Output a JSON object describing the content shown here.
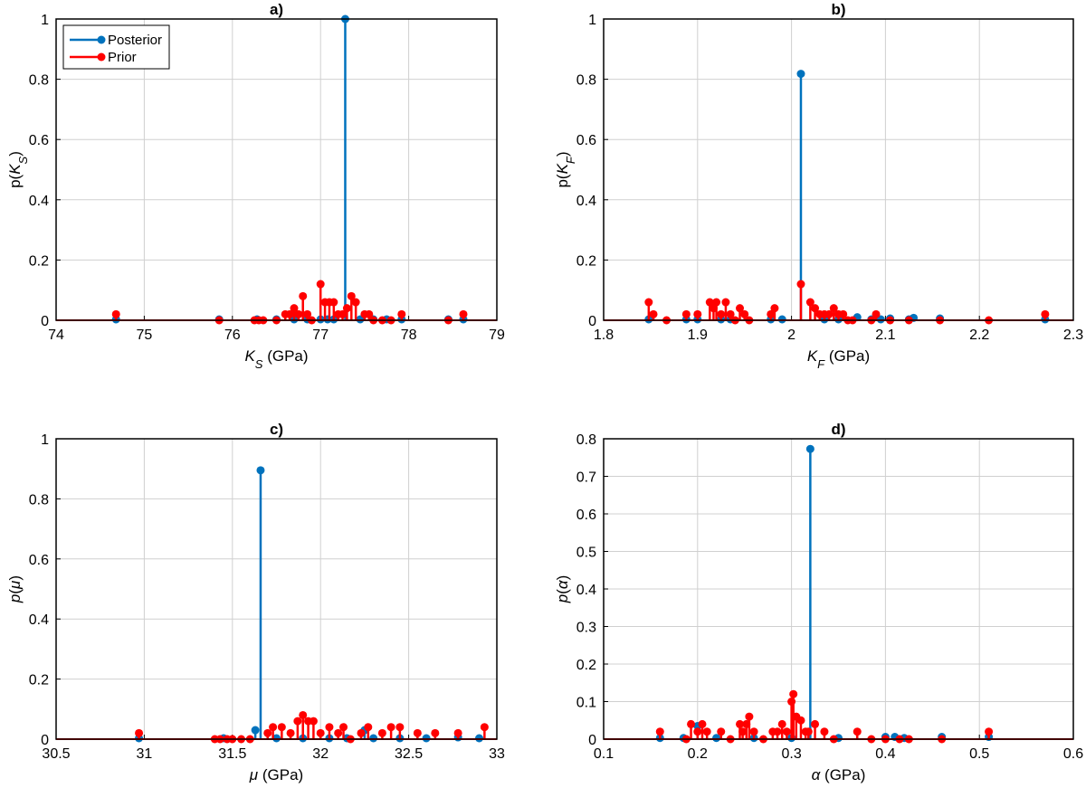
{
  "colors": {
    "posterior": "#0072BD",
    "prior": "#FF0000",
    "grid": "#D0D0D0",
    "axis": "#000000"
  },
  "legend": {
    "entries": [
      "Posterior",
      "Prior"
    ],
    "placement": "top-left of panel a"
  },
  "chart_data": [
    {
      "type": "stem",
      "title": "a)",
      "ylabel": "p(K_S)",
      "xlabel": "K_S (GPa)",
      "xlim": [
        74,
        79
      ],
      "ylim": [
        0,
        1
      ],
      "xticks": [
        "74",
        "75",
        "76",
        "77",
        "78",
        "79"
      ],
      "yticks": [
        "0",
        "0.2",
        "0.4",
        "0.6",
        "0.8",
        "1"
      ],
      "grid": true,
      "series": [
        {
          "name": "Posterior",
          "x": [
            74.68,
            75.85,
            76.28,
            76.5,
            76.7,
            76.85,
            77.0,
            77.08,
            77.15,
            77.28,
            77.45,
            77.6,
            77.75,
            77.92,
            78.45,
            78.62
          ],
          "y": [
            0.003,
            0.003,
            0.003,
            0.003,
            0.003,
            0.003,
            0.003,
            0.003,
            0.003,
            1.0,
            0.003,
            0.003,
            0.003,
            0.003,
            0.003,
            0.003
          ]
        },
        {
          "name": "Prior",
          "x": [
            74.68,
            75.85,
            76.25,
            76.3,
            76.35,
            76.5,
            76.6,
            76.65,
            76.7,
            76.75,
            76.8,
            76.85,
            76.9,
            77.0,
            77.05,
            77.1,
            77.15,
            77.2,
            77.25,
            77.3,
            77.35,
            77.4,
            77.5,
            77.55,
            77.6,
            77.7,
            77.8,
            77.92,
            78.45,
            78.62
          ],
          "y": [
            0.02,
            0.0,
            0.0,
            0.0,
            0.0,
            0.0,
            0.02,
            0.02,
            0.04,
            0.02,
            0.08,
            0.02,
            0.0,
            0.12,
            0.06,
            0.06,
            0.06,
            0.02,
            0.02,
            0.04,
            0.08,
            0.06,
            0.02,
            0.02,
            0.0,
            0.0,
            0.0,
            0.02,
            0.0,
            0.02
          ]
        }
      ]
    },
    {
      "type": "stem",
      "title": "b)",
      "ylabel": "p(K_F)",
      "xlabel": "K_F (GPa)",
      "xlim": [
        1.8,
        2.3
      ],
      "ylim": [
        0,
        1
      ],
      "xticks": [
        "1.8",
        "1.9",
        "2",
        "2.1",
        "2.2",
        "2.3"
      ],
      "yticks": [
        "0",
        "0.2",
        "0.4",
        "0.6",
        "0.8",
        "1"
      ],
      "grid": true,
      "series": [
        {
          "name": "Posterior",
          "x": [
            1.848,
            1.888,
            1.9,
            1.925,
            1.935,
            1.978,
            1.99,
            2.01,
            2.035,
            2.05,
            2.07,
            2.085,
            2.095,
            2.105,
            2.125,
            2.13,
            2.158,
            2.27
          ],
          "y": [
            0.003,
            0.003,
            0.003,
            0.003,
            0.003,
            0.003,
            0.003,
            0.818,
            0.003,
            0.003,
            0.01,
            0.003,
            0.003,
            0.006,
            0.003,
            0.008,
            0.006,
            0.003
          ]
        },
        {
          "name": "Prior",
          "x": [
            1.848,
            1.853,
            1.867,
            1.888,
            1.9,
            1.913,
            1.917,
            1.92,
            1.925,
            1.93,
            1.935,
            1.94,
            1.945,
            1.95,
            1.955,
            1.978,
            1.982,
            2.01,
            2.02,
            2.025,
            2.03,
            2.035,
            2.04,
            2.045,
            2.05,
            2.055,
            2.06,
            2.065,
            2.085,
            2.09,
            2.105,
            2.125,
            2.158,
            2.21,
            2.27
          ],
          "y": [
            0.06,
            0.02,
            0.0,
            0.02,
            0.02,
            0.06,
            0.04,
            0.06,
            0.02,
            0.06,
            0.02,
            0.0,
            0.04,
            0.02,
            0.0,
            0.02,
            0.04,
            0.12,
            0.06,
            0.04,
            0.02,
            0.02,
            0.02,
            0.04,
            0.02,
            0.02,
            0.0,
            0.0,
            0.0,
            0.02,
            0.0,
            0.0,
            0.0,
            0.0,
            0.02
          ]
        }
      ]
    },
    {
      "type": "stem",
      "title": "c)",
      "ylabel": "p(μ)",
      "xlabel": "μ (GPa)",
      "xlim": [
        30.5,
        33
      ],
      "ylim": [
        0,
        1
      ],
      "xticks": [
        "30.5",
        "31",
        "31.5",
        "32",
        "32.5",
        "33"
      ],
      "yticks": [
        "0",
        "0.2",
        "0.4",
        "0.6",
        "0.8",
        "1"
      ],
      "grid": true,
      "series": [
        {
          "name": "Posterior",
          "x": [
            30.97,
            31.45,
            31.63,
            31.66,
            31.75,
            31.9,
            32.05,
            32.15,
            32.25,
            32.3,
            32.45,
            32.6,
            32.78,
            32.9
          ],
          "y": [
            0.003,
            0.003,
            0.03,
            0.895,
            0.003,
            0.003,
            0.003,
            0.003,
            0.03,
            0.003,
            0.003,
            0.003,
            0.006,
            0.003
          ]
        },
        {
          "name": "Prior",
          "x": [
            30.97,
            31.4,
            31.43,
            31.47,
            31.5,
            31.55,
            31.6,
            31.7,
            31.73,
            31.78,
            31.83,
            31.87,
            31.9,
            31.93,
            31.96,
            32.0,
            32.05,
            32.1,
            32.13,
            32.17,
            32.23,
            32.27,
            32.35,
            32.4,
            32.45,
            32.55,
            32.65,
            32.78,
            32.93
          ],
          "y": [
            0.02,
            0.0,
            0.0,
            0.0,
            0.0,
            0.0,
            0.0,
            0.02,
            0.04,
            0.04,
            0.02,
            0.06,
            0.08,
            0.06,
            0.06,
            0.02,
            0.04,
            0.02,
            0.04,
            0.0,
            0.02,
            0.04,
            0.02,
            0.04,
            0.04,
            0.02,
            0.02,
            0.02,
            0.04
          ]
        }
      ]
    },
    {
      "type": "stem",
      "title": "d)",
      "ylabel": "p(α)",
      "xlabel": "α (GPa)",
      "xlim": [
        0.1,
        0.6
      ],
      "ylim": [
        0,
        0.8
      ],
      "xticks": [
        "0.1",
        "0.2",
        "0.3",
        "0.4",
        "0.5",
        "0.6"
      ],
      "yticks": [
        "0",
        "0.1",
        "0.2",
        "0.3",
        "0.4",
        "0.5",
        "0.6",
        "0.7",
        "0.8"
      ],
      "grid": true,
      "series": [
        {
          "name": "Posterior",
          "x": [
            0.16,
            0.185,
            0.2,
            0.22,
            0.26,
            0.3,
            0.32,
            0.35,
            0.4,
            0.41,
            0.42,
            0.46,
            0.51
          ],
          "y": [
            0.003,
            0.003,
            0.035,
            0.003,
            0.003,
            0.003,
            0.773,
            0.003,
            0.006,
            0.006,
            0.003,
            0.006,
            0.006
          ]
        },
        {
          "name": "Prior",
          "x": [
            0.16,
            0.188,
            0.193,
            0.2,
            0.205,
            0.21,
            0.225,
            0.235,
            0.245,
            0.248,
            0.252,
            0.255,
            0.26,
            0.27,
            0.28,
            0.285,
            0.29,
            0.295,
            0.3,
            0.302,
            0.305,
            0.31,
            0.315,
            0.318,
            0.325,
            0.335,
            0.345,
            0.37,
            0.385,
            0.4,
            0.415,
            0.425,
            0.46,
            0.51
          ],
          "y": [
            0.02,
            0.0,
            0.04,
            0.02,
            0.04,
            0.02,
            0.02,
            0.0,
            0.04,
            0.02,
            0.04,
            0.06,
            0.02,
            0.0,
            0.02,
            0.02,
            0.04,
            0.02,
            0.1,
            0.12,
            0.06,
            0.05,
            0.02,
            0.02,
            0.04,
            0.02,
            0.0,
            0.02,
            0.0,
            0.0,
            0.0,
            0.0,
            0.0,
            0.02
          ]
        }
      ]
    }
  ]
}
